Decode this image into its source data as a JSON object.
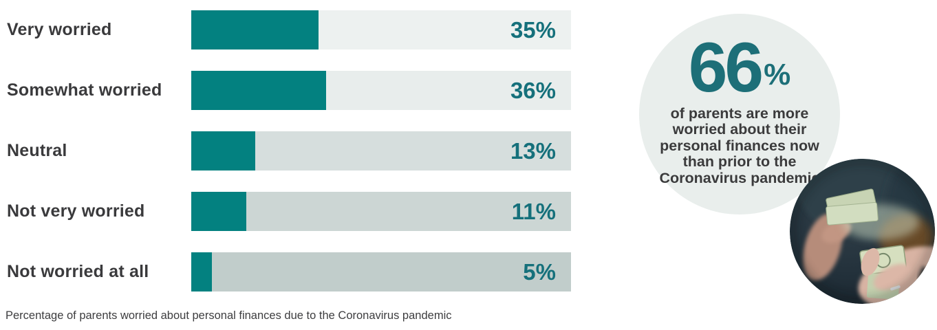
{
  "chart_data": {
    "type": "bar",
    "orientation": "horizontal",
    "title": "",
    "caption": "Percentage of parents worried about personal finances due to the Coronavirus pandemic",
    "categories": [
      "Very worried",
      "Somewhat worried",
      "Neutral",
      "Not very worried",
      "Not worried at all"
    ],
    "values": [
      35,
      36,
      13,
      11,
      5
    ],
    "value_suffix": "%",
    "xlim": [
      0,
      100
    ],
    "grid": false,
    "legend": "none",
    "bar_color": "#038180",
    "value_label_color": "#15707b",
    "category_label_color": "#3a3a3c",
    "track_colors": [
      "#edf1f0",
      "#e8edec",
      "#d6dedd",
      "#ccd6d4",
      "#c1cdcb"
    ],
    "fill_fractions": [
      0.335,
      0.355,
      0.168,
      0.145,
      0.054
    ]
  },
  "callout": {
    "value": "66",
    "unit": "%",
    "text": "of parents are more worried about their personal finances now than prior to the Coronavirus pandemic",
    "circle_color": "#e9eeec",
    "accent_color": "#1d6f78"
  },
  "photo": {
    "description": "person counting US dollar bills with both hands"
  }
}
